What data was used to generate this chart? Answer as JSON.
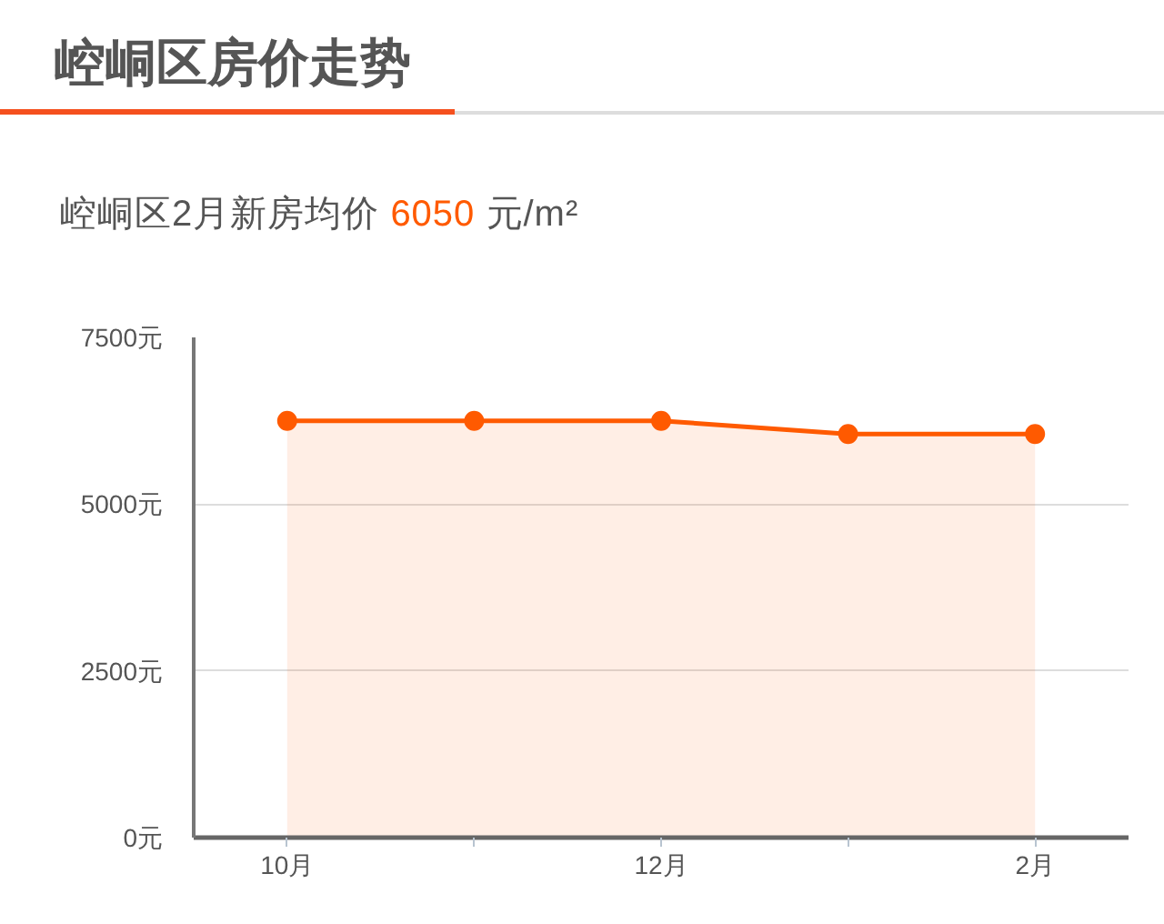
{
  "chart_data": {
    "type": "area",
    "title": "崆峒区房价走势",
    "subtitle": "崆峒区2月新房均价 6050 元/m²",
    "categories": [
      "10月",
      null,
      "12月",
      null,
      "2月"
    ],
    "series": [
      {
        "color": "#ff5a00",
        "values": [
          6250,
          6250,
          6250,
          6050,
          6050
        ]
      }
    ],
    "ylim": [
      0,
      7500
    ],
    "yticks": [
      {
        "value": 0,
        "label": "0元"
      },
      {
        "value": 2500,
        "label": "2500元"
      },
      {
        "value": 5000,
        "label": "5000元"
      },
      {
        "value": 7500,
        "label": "7500元"
      }
    ],
    "grid": "y",
    "marker": "circle",
    "line_style": "solid"
  }
}
